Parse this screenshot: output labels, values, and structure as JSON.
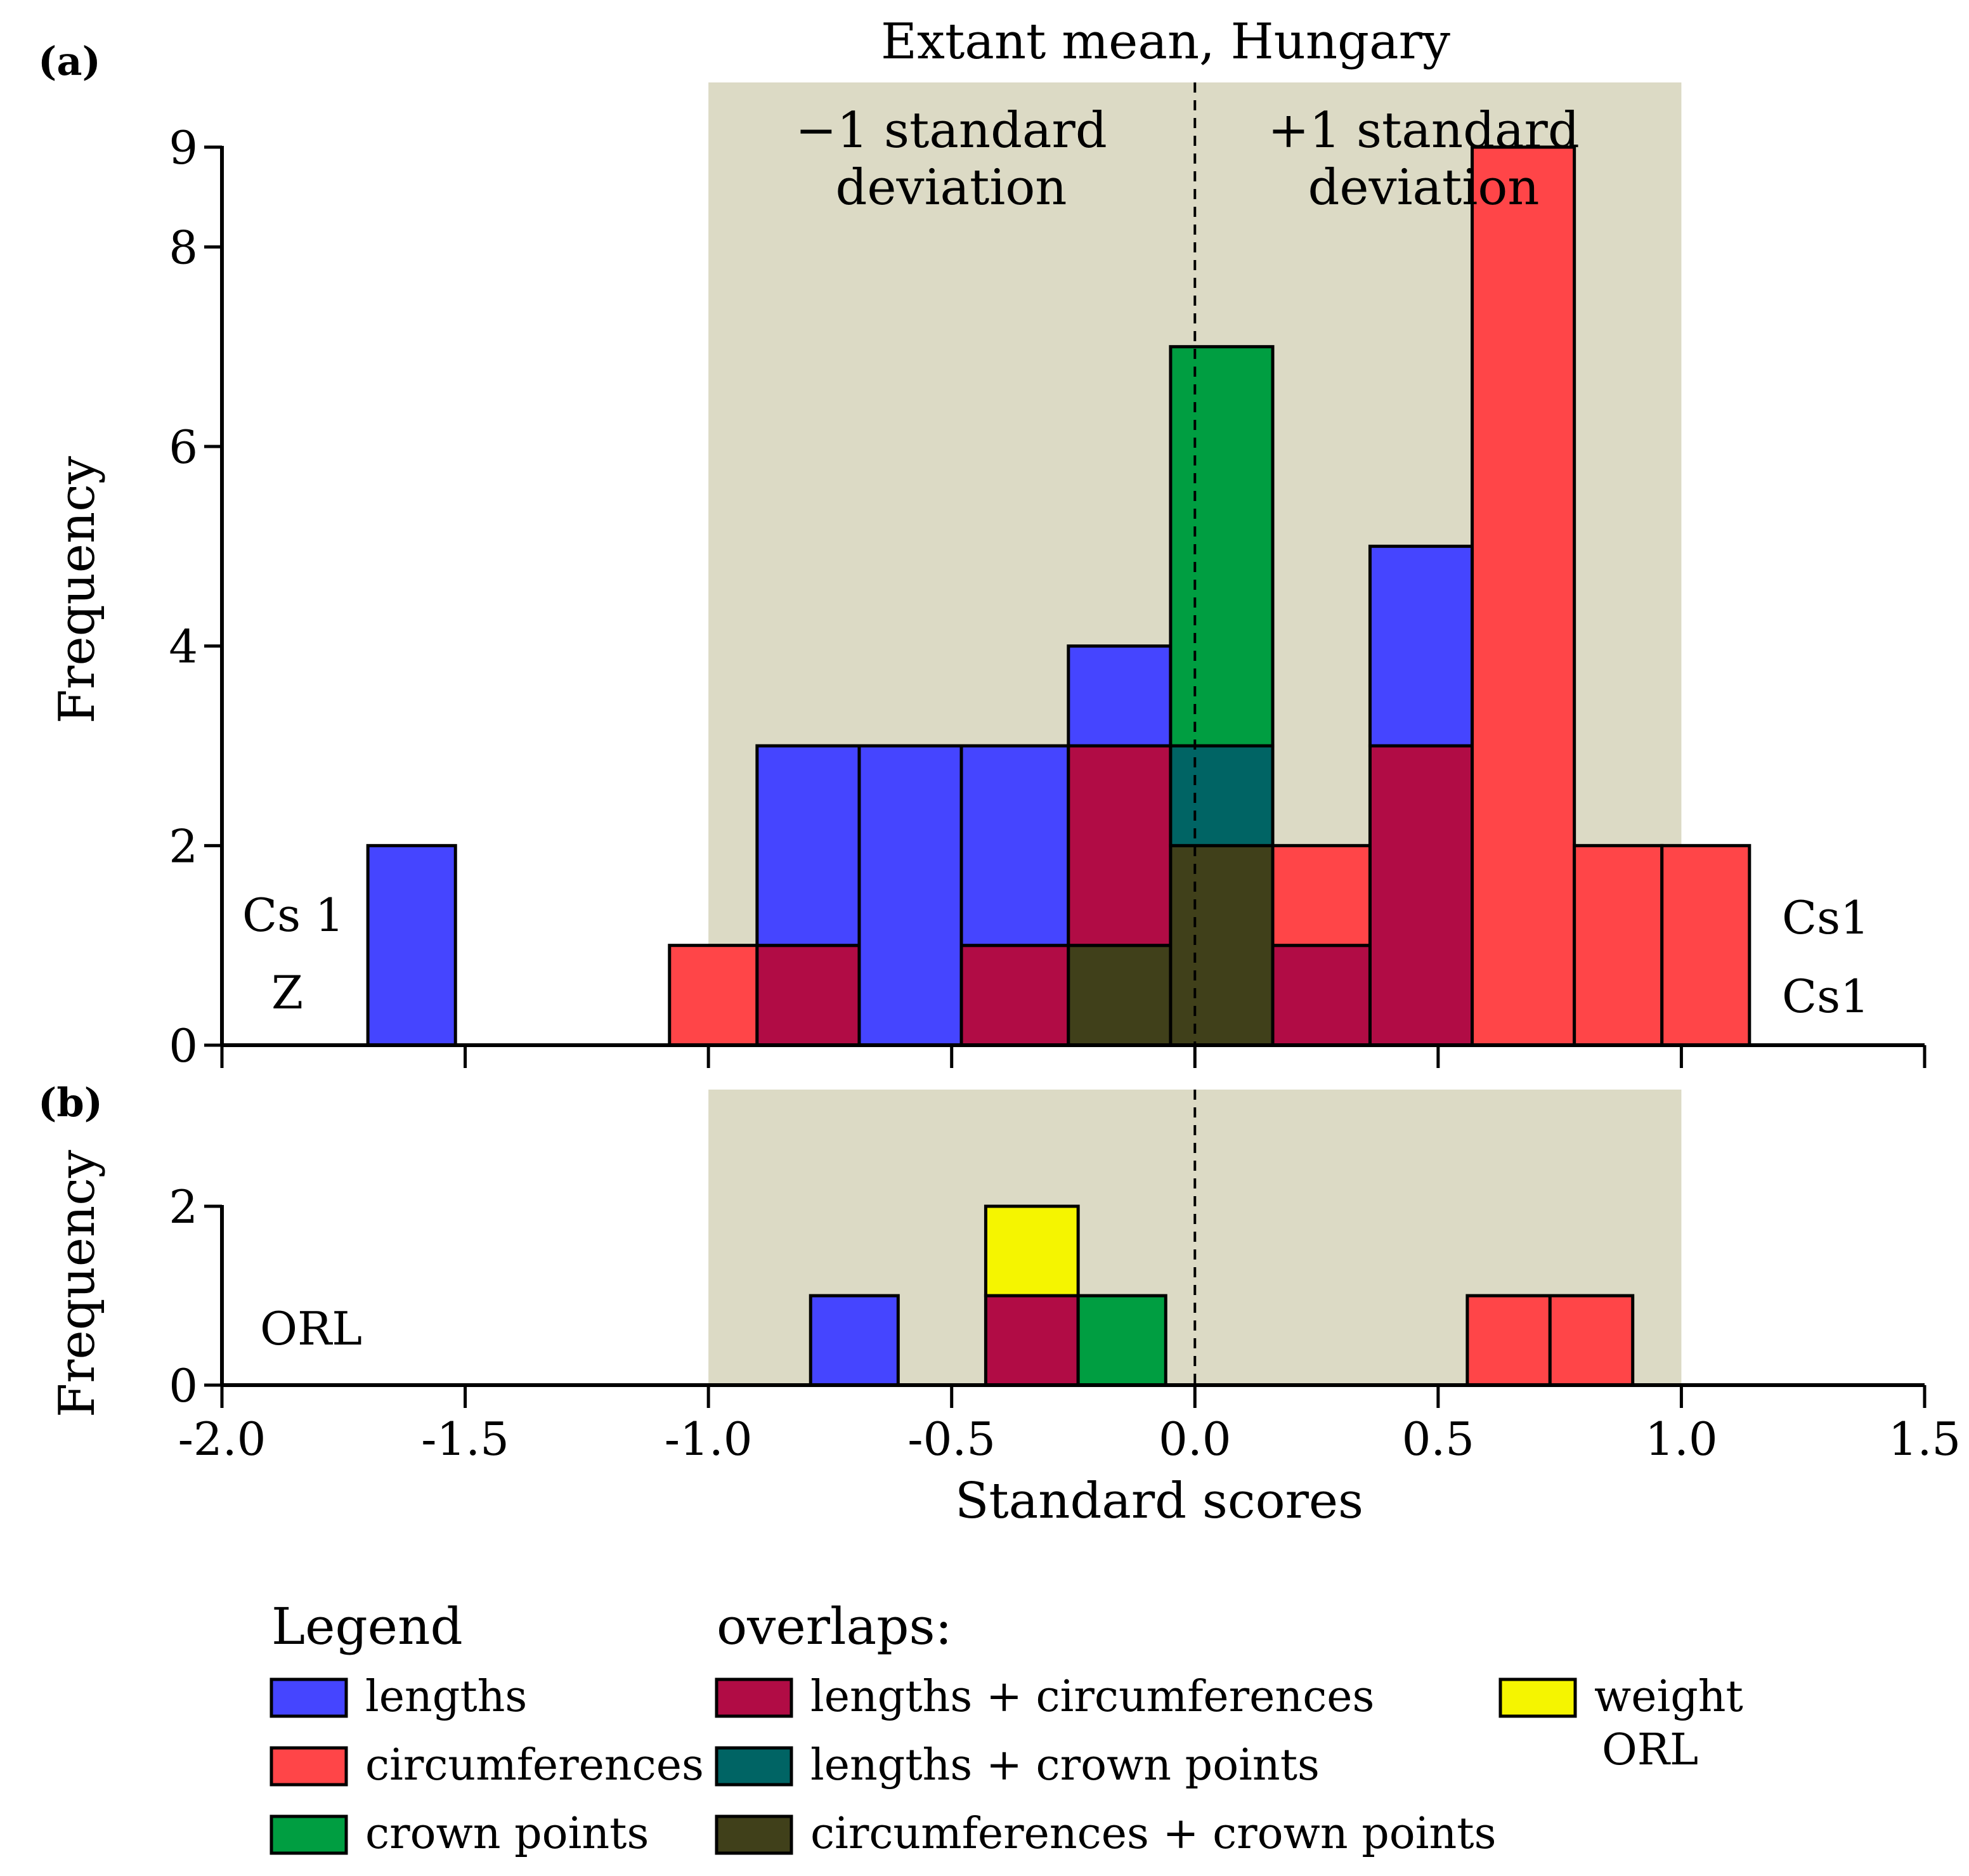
{
  "figure": {
    "mean_label": "Extant mean, Hungary",
    "minus_sd_line1": "−1 standard",
    "minus_sd_line2": "deviation",
    "plus_sd_line1": "+1 standard",
    "plus_sd_line2": "deviation",
    "xlabel": "Standard scores",
    "band_color": "#dcdac5"
  },
  "colors": {
    "lengths": "#4545ff",
    "circumferences": "#ff4548",
    "crown_points": "#009e41",
    "lengths_circumferences": "#b10c45",
    "lengths_crown_points": "#006464",
    "circumferences_crown_points": "#40401a",
    "weight": "#f5f500"
  },
  "legend": {
    "title": "Legend",
    "overlaps_title": "overlaps:",
    "items": [
      {
        "key": "lengths",
        "label": "lengths"
      },
      {
        "key": "circumferences",
        "label": "circumferences"
      },
      {
        "key": "crown_points",
        "label": "crown points"
      },
      {
        "key": "lengths_circumferences",
        "label": "lengths + circumferences"
      },
      {
        "key": "lengths_crown_points",
        "label": "lengths + crown points"
      },
      {
        "key": "circumferences_crown_points",
        "label": "circumferences + crown points"
      },
      {
        "key": "weight",
        "label": "weight"
      }
    ],
    "weight_sub": "ORL"
  },
  "chart_data": [
    {
      "type": "bar",
      "panel_label": "(a)",
      "ylabel": "Frequency",
      "xlim": [
        -2.0,
        1.5
      ],
      "ylim": [
        0,
        9
      ],
      "yticks": [
        0,
        2,
        4,
        6,
        8,
        9
      ],
      "ytick_labels": [
        "0",
        "2",
        "4",
        "6",
        "8",
        "9"
      ],
      "sd_band": [
        -1.0,
        1.0
      ],
      "mean_line_x": 0.0,
      "left_annotations": [
        "Cs 1",
        "Z"
      ],
      "right_annotations": [
        "Cs1",
        "Cs1"
      ],
      "bars": [
        {
          "x0": -1.7,
          "x1": -1.52,
          "segments": [
            {
              "category": "lengths",
              "value": 2
            }
          ]
        },
        {
          "x0": -1.08,
          "x1": -0.9,
          "segments": [
            {
              "category": "circumferences",
              "value": 1
            }
          ]
        },
        {
          "x0": -0.9,
          "x1": -0.69,
          "segments": [
            {
              "category": "lengths_circumferences",
              "value": 1
            },
            {
              "category": "lengths",
              "value": 2
            }
          ]
        },
        {
          "x0": -0.69,
          "x1": -0.48,
          "segments": [
            {
              "category": "lengths",
              "value": 3
            }
          ]
        },
        {
          "x0": -0.48,
          "x1": -0.26,
          "segments": [
            {
              "category": "lengths_circumferences",
              "value": 1
            },
            {
              "category": "lengths",
              "value": 2
            }
          ]
        },
        {
          "x0": -0.26,
          "x1": -0.05,
          "segments": [
            {
              "category": "circumferences_crown_points",
              "value": 1
            },
            {
              "category": "lengths_circumferences",
              "value": 2
            },
            {
              "category": "lengths",
              "value": 1
            }
          ]
        },
        {
          "x0": -0.05,
          "x1": 0.16,
          "segments": [
            {
              "category": "circumferences_crown_points",
              "value": 2
            },
            {
              "category": "lengths_crown_points",
              "value": 1
            },
            {
              "category": "crown_points",
              "value": 4
            }
          ]
        },
        {
          "x0": 0.16,
          "x1": 0.36,
          "segments": [
            {
              "category": "lengths_circumferences",
              "value": 1
            },
            {
              "category": "circumferences",
              "value": 1
            }
          ]
        },
        {
          "x0": 0.36,
          "x1": 0.57,
          "segments": [
            {
              "category": "lengths_circumferences",
              "value": 3
            },
            {
              "category": "lengths",
              "value": 2
            }
          ]
        },
        {
          "x0": 0.57,
          "x1": 0.78,
          "segments": [
            {
              "category": "circumferences",
              "value": 9
            }
          ]
        },
        {
          "x0": 0.78,
          "x1": 0.96,
          "segments": [
            {
              "category": "circumferences",
              "value": 2
            }
          ]
        },
        {
          "x0": 0.96,
          "x1": 1.14,
          "segments": [
            {
              "category": "circumferences",
              "value": 2
            }
          ]
        }
      ]
    },
    {
      "type": "bar",
      "panel_label": "(b)",
      "ylabel": "Frequency",
      "xlim": [
        -2.0,
        1.5
      ],
      "ylim": [
        0,
        2
      ],
      "yticks": [
        0,
        2
      ],
      "ytick_labels": [
        "0",
        "2"
      ],
      "xticks": [
        -2.0,
        -1.5,
        -1.0,
        -0.5,
        0.0,
        0.5,
        1.0,
        1.5
      ],
      "xtick_labels": [
        "-2.0",
        "-1.5",
        "-1.0",
        "-0.5",
        "0.0",
        "0.5",
        "1.0",
        "1.5"
      ],
      "sd_band": [
        -1.0,
        1.0
      ],
      "mean_line_x": 0.0,
      "left_annotations": [
        "ORL"
      ],
      "bars": [
        {
          "x0": -0.79,
          "x1": -0.61,
          "segments": [
            {
              "category": "lengths",
              "value": 1
            }
          ]
        },
        {
          "x0": -0.43,
          "x1": -0.24,
          "segments": [
            {
              "category": "lengths_circumferences",
              "value": 1
            },
            {
              "category": "weight",
              "value": 1
            }
          ]
        },
        {
          "x0": -0.24,
          "x1": -0.06,
          "segments": [
            {
              "category": "crown_points",
              "value": 1
            }
          ]
        },
        {
          "x0": 0.56,
          "x1": 0.73,
          "segments": [
            {
              "category": "circumferences",
              "value": 1
            }
          ]
        },
        {
          "x0": 0.73,
          "x1": 0.9,
          "segments": [
            {
              "category": "circumferences",
              "value": 1
            }
          ]
        }
      ]
    }
  ]
}
